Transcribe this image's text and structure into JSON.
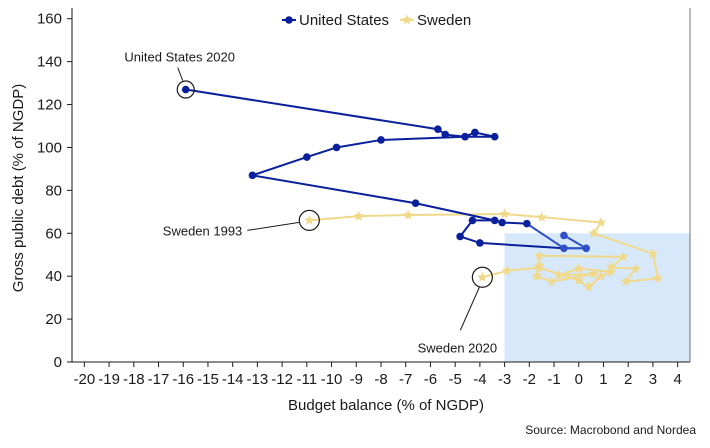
{
  "chart_data": {
    "type": "line",
    "title": "",
    "xlabel": "Budget balance (% of NGDP)",
    "ylabel": "Gross public debt (% of NGDP)",
    "xlim": [
      -20.5,
      4.5
    ],
    "ylim": [
      0,
      165
    ],
    "xticks": [
      -20,
      -19,
      -18,
      -17,
      -16,
      -15,
      -14,
      -13,
      -12,
      -11,
      -10,
      -9,
      -8,
      -7,
      -6,
      -5,
      -4,
      -3,
      -2,
      -1,
      0,
      1,
      2,
      3,
      4
    ],
    "yticks": [
      0,
      20,
      40,
      60,
      80,
      100,
      120,
      140,
      160
    ],
    "grid": false,
    "legend": "top-center",
    "source": "Source: Macrobond and Nordea",
    "shaded_region": {
      "x": [
        -3,
        4.5
      ],
      "y": [
        0,
        60
      ],
      "color": "#d6e8fa"
    },
    "series": [
      {
        "name": "United States",
        "color": "#0a1f9c",
        "recent_color": "#2f4fc7",
        "marker": "circle",
        "points": [
          [
            -0.6,
            59
          ],
          [
            0.3,
            53
          ],
          [
            -0.6,
            53
          ],
          [
            -2.1,
            64.5
          ],
          [
            -3.1,
            65
          ],
          [
            -3.4,
            66
          ],
          [
            -6.6,
            74
          ],
          [
            -13.2,
            87
          ],
          [
            -11.0,
            95.5
          ],
          [
            -9.8,
            100
          ],
          [
            -8.0,
            103.5
          ],
          [
            -4.6,
            105
          ],
          [
            -3.4,
            105
          ],
          [
            -4.2,
            107
          ],
          [
            -4.6,
            105
          ],
          [
            -5.4,
            106
          ],
          [
            -5.7,
            108.5
          ],
          [
            -15.9,
            127
          ]
        ],
        "recent_count": 3,
        "extra_points": [
          [
            -4.0,
            55.5
          ],
          [
            -4.8,
            58.5
          ],
          [
            -4.3,
            66
          ]
        ]
      },
      {
        "name": "Sweden",
        "color": "#f0d98a",
        "marker": "star",
        "points": [
          [
            -10.9,
            66
          ],
          [
            -8.9,
            68
          ],
          [
            -6.9,
            68.5
          ],
          [
            -3.0,
            69
          ],
          [
            -1.5,
            67.5
          ],
          [
            0.9,
            65
          ],
          [
            0.6,
            60
          ],
          [
            3.0,
            50.5
          ],
          [
            3.2,
            39
          ],
          [
            1.9,
            37.5
          ],
          [
            2.3,
            43.5
          ],
          [
            1.3,
            44
          ],
          [
            1.8,
            49
          ],
          [
            -1.6,
            49.5
          ],
          [
            -1.6,
            45
          ],
          [
            -1.7,
            40
          ],
          [
            -1.1,
            37.5
          ],
          [
            0.6,
            41
          ],
          [
            -0.8,
            40.5
          ],
          [
            0.0,
            43.5
          ],
          [
            1.3,
            42
          ],
          [
            0.9,
            40
          ],
          [
            0.4,
            35
          ],
          [
            0.0,
            38
          ],
          [
            -1.6,
            44
          ],
          [
            -2.9,
            42.5
          ],
          [
            -3.9,
            39.5
          ]
        ]
      }
    ],
    "annotations": [
      {
        "text": "United States 2020",
        "point": [
          -15.9,
          127
        ]
      },
      {
        "text": "Sweden 1993",
        "point": [
          -10.9,
          66
        ]
      },
      {
        "text": "Sweden 2020",
        "point": [
          -3.9,
          39.5
        ]
      }
    ]
  }
}
